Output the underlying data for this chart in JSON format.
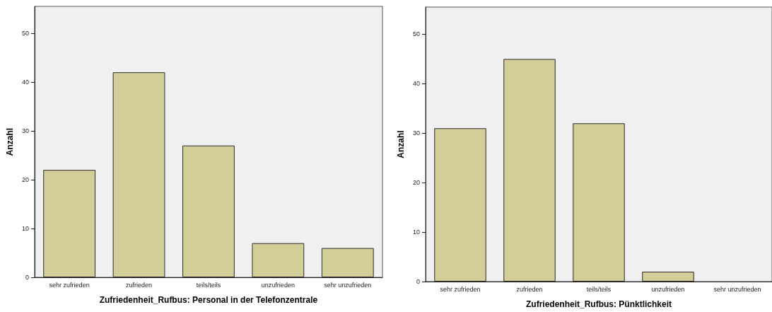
{
  "chart_data": [
    {
      "type": "bar",
      "xlabel": "Zufriedenheit_Rufbus: Personal in der Telefonzentrale",
      "ylabel": "Anzahl",
      "categories": [
        "sehr zufrieden",
        "zufrieden",
        "teils/teils",
        "unzufrieden",
        "sehr unzufrieden"
      ],
      "values": [
        22,
        42,
        27,
        7,
        6
      ],
      "color": "#d3ce97",
      "ylim": [
        0,
        55.5
      ],
      "yticks": [
        0,
        10,
        20,
        30,
        40,
        50
      ],
      "grid": false
    },
    {
      "type": "bar",
      "xlabel": "Zufriedenheit_Rufbus: Pünktlichkeit",
      "ylabel": "Anzahl",
      "categories": [
        "sehr zufrieden",
        "zufrieden",
        "teils/teils",
        "unzufrieden",
        "sehr unzufrieden"
      ],
      "values": [
        31,
        45,
        32,
        2,
        0
      ],
      "color": "#d3ce97",
      "ylim": [
        0,
        55.5
      ],
      "yticks": [
        0,
        10,
        20,
        30,
        40,
        50
      ],
      "grid": false
    }
  ]
}
